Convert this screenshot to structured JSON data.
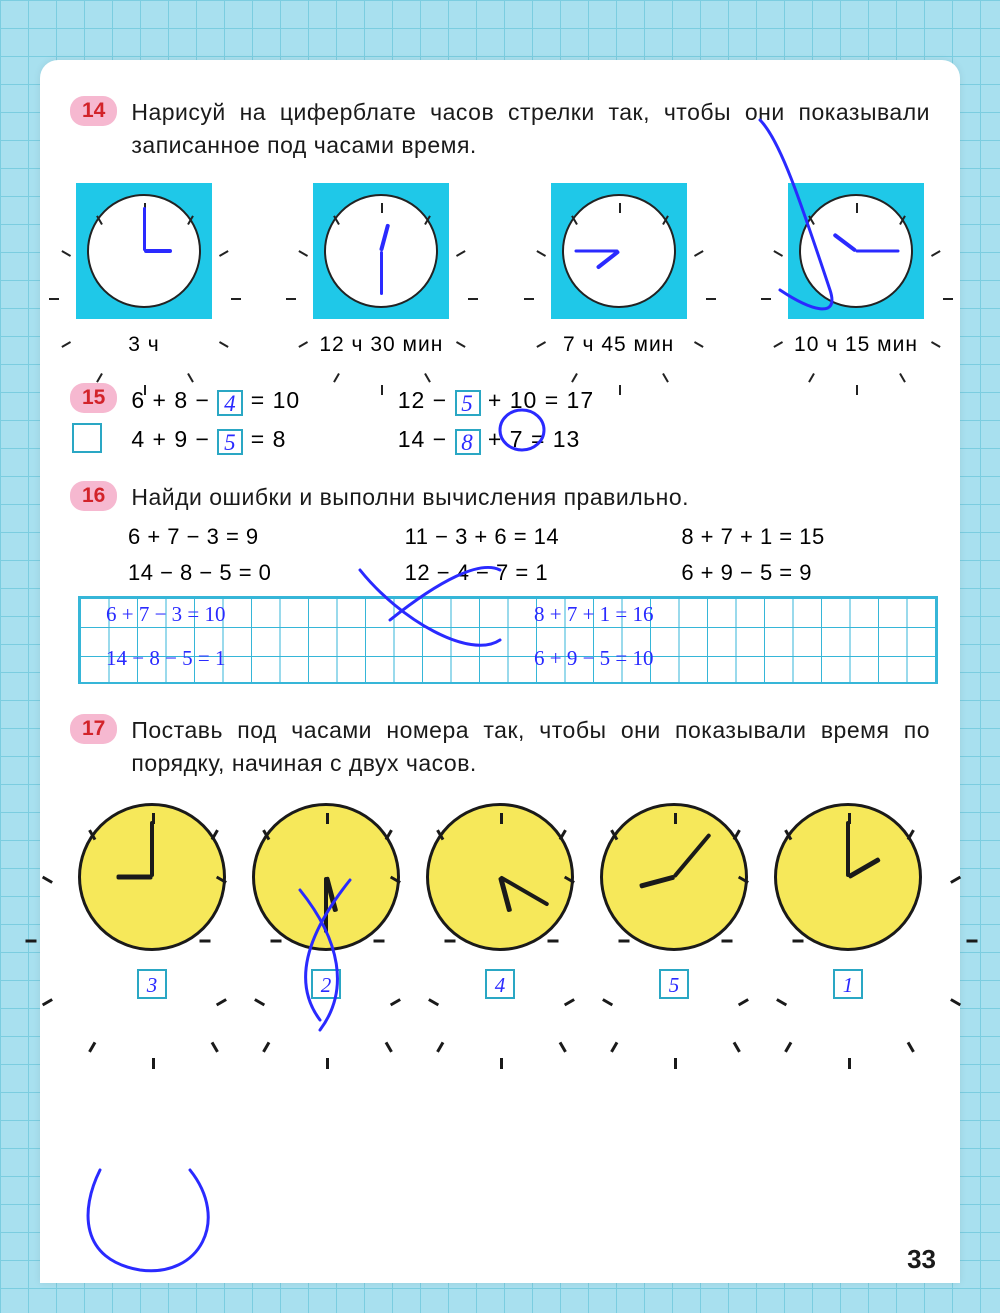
{
  "page_number": "33",
  "colors": {
    "outer_bg": "#a8e0ef",
    "grid_line": "#7bcde0",
    "page_bg": "#ffffff",
    "badge_bg": "#f6b8d0",
    "badge_text": "#d2232a",
    "clock_box_bg": "#1fc8e8",
    "pen_blue": "#2a2aff",
    "cell_border": "#36b6d8",
    "yellow_face": "#f6e85a"
  },
  "p14": {
    "num": "14",
    "text": "Нарисуй на циферблате часов стрелки так, чтобы они показывали записанное под часами время.",
    "clocks": [
      {
        "label": "3 ч",
        "hour_angle": 90,
        "min_angle": 0
      },
      {
        "label": "12 ч 30 мин",
        "hour_angle": 15,
        "min_angle": 180
      },
      {
        "label": "7 ч 45 мин",
        "hour_angle": 232,
        "min_angle": 270
      },
      {
        "label": "10 ч 15 мин",
        "hour_angle": 307,
        "min_angle": 90
      }
    ]
  },
  "p15": {
    "num": "15",
    "eqs": [
      {
        "pre": "6 + 8 − ",
        "ans": "4",
        "post": " = 10"
      },
      {
        "pre": "12 − ",
        "ans": "5",
        "post": " + 10 = 17"
      },
      {
        "pre": "4 + 9 − ",
        "ans": "5",
        "post": " = 8"
      },
      {
        "pre": "14 − ",
        "ans": "8",
        "post": " + 7 = 13"
      }
    ]
  },
  "p16": {
    "num": "16",
    "text": "Найди ошибки и выполни вычисления правильно.",
    "printed": [
      "6 + 7 − 3 = 9",
      "11 − 3 + 6 = 14",
      "8 + 7 + 1 = 15",
      "14 − 8 − 5 = 0",
      "12 − 4 − 7 = 1",
      "6 + 9 − 5 = 9"
    ],
    "hand_row1_left": "6 + 7 − 3 = 10",
    "hand_row1_right": "8 + 7 + 1 = 16",
    "hand_row2_left": "14 − 8 − 5 = 1",
    "hand_row2_right": "6 + 9 − 5 = 10"
  },
  "p17": {
    "num": "17",
    "text": "Поставь под часами номера так, чтобы они показывали время по порядку, начиная с двух часов.",
    "clocks": [
      {
        "hour_angle": 270,
        "min_angle": 0,
        "answer": "3"
      },
      {
        "hour_angle": 165,
        "min_angle": 180,
        "answer": "2"
      },
      {
        "hour_angle": 165,
        "min_angle": 120,
        "answer": "4"
      },
      {
        "hour_angle": 255,
        "min_angle": 40,
        "answer": "5"
      },
      {
        "hour_angle": 60,
        "min_angle": 0,
        "answer": "1"
      }
    ]
  }
}
